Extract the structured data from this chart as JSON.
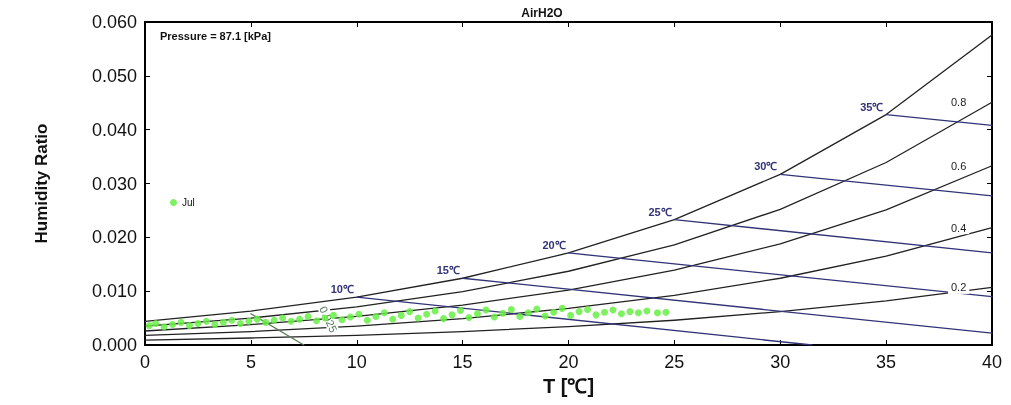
{
  "chart_data": {
    "type": "line",
    "title": "AirH2O",
    "xlabel": "T [℃]",
    "ylabel": "Humidity Ratio",
    "annotations": [
      "Pressure = 87.1 [kPa]"
    ],
    "xlim": [
      0,
      40
    ],
    "xticks": [
      0,
      5,
      10,
      15,
      20,
      25,
      30,
      35,
      40
    ],
    "ylim": [
      0,
      0.06
    ],
    "yticks": [
      {
        "value": 0,
        "label": "0.000"
      },
      {
        "value": 0.01,
        "label": "0.010"
      },
      {
        "value": 0.02,
        "label": "0.020"
      },
      {
        "value": 0.03,
        "label": "0.030"
      },
      {
        "value": 0.04,
        "label": "0.040"
      },
      {
        "value": 0.05,
        "label": "0.050"
      },
      {
        "value": 0.06,
        "label": "0.060"
      }
    ],
    "grid": false,
    "legend": "left",
    "marker": "none",
    "line_style": "solid",
    "series": [
      {
        "color": "#222222",
        "x": [
          0,
          5,
          10,
          15,
          20,
          25,
          30,
          35,
          40
        ],
        "values": [
          0.0044,
          0.0063,
          0.0089,
          0.0124,
          0.0171,
          0.0233,
          0.0317,
          0.0428,
          0.0576
        ]
      },
      {
        "name": "0.8",
        "color": "#222222",
        "x": [
          0,
          5,
          10,
          15,
          20,
          25,
          30,
          35,
          40
        ],
        "values": [
          0.0035,
          0.005,
          0.0071,
          0.0099,
          0.0137,
          0.0186,
          0.0252,
          0.0339,
          0.0451
        ]
      },
      {
        "name": "0.6",
        "color": "#222222",
        "x": [
          0,
          5,
          10,
          15,
          20,
          25,
          30,
          35,
          40
        ],
        "values": [
          0.0026,
          0.0038,
          0.0053,
          0.0074,
          0.0102,
          0.0139,
          0.0188,
          0.0251,
          0.0333
        ]
      },
      {
        "name": "0.4",
        "color": "#222222",
        "x": [
          0,
          5,
          10,
          15,
          20,
          25,
          30,
          35,
          40
        ],
        "values": [
          0.0018,
          0.0025,
          0.0035,
          0.0049,
          0.0068,
          0.0092,
          0.0124,
          0.0165,
          0.0218
        ]
      },
      {
        "name": "0.2",
        "color": "#222222",
        "x": [
          0,
          5,
          10,
          15,
          20,
          25,
          30,
          35,
          40
        ],
        "values": [
          0.0009,
          0.0013,
          0.0018,
          0.0025,
          0.0034,
          0.0046,
          0.0062,
          0.0082,
          0.0107
        ]
      },
      {
        "name": "10℃",
        "color": "#333377",
        "x": [
          31.5,
          10
        ],
        "values": [
          0,
          0.0089
        ]
      },
      {
        "name": "15℃",
        "color": "#333377",
        "x": [
          40,
          15
        ],
        "values": [
          0.0022,
          0.0124
        ]
      },
      {
        "name": "20℃",
        "color": "#333377",
        "x": [
          40,
          20
        ],
        "values": [
          0.009,
          0.0171
        ]
      },
      {
        "name": "25℃",
        "color": "#333377",
        "x": [
          40,
          25
        ],
        "values": [
          0.0171,
          0.0233
        ]
      },
      {
        "name": "30℃",
        "color": "#333377",
        "x": [
          40,
          30
        ],
        "values": [
          0.0277,
          0.0317
        ]
      },
      {
        "name": "35℃",
        "color": "#333377",
        "x": [
          40,
          35
        ],
        "values": [
          0.0408,
          0.0428
        ]
      },
      {
        "name": "0.925",
        "color": "#5a7a5a",
        "x": [
          5.0,
          7.5
        ],
        "values": [
          0.0058,
          0
        ]
      },
      {
        "type": "scatter",
        "name": "Jul",
        "color": "#66ee44",
        "marker": "circle",
        "x": [
          0.2,
          0.5,
          0.9,
          1.3,
          1.7,
          2.1,
          2.5,
          2.9,
          3.3,
          3.7,
          4.1,
          4.5,
          4.9,
          5.3,
          5.7,
          6.1,
          6.5,
          6.9,
          7.3,
          7.7,
          8.1,
          8.5,
          8.9,
          9.3,
          9.7,
          10.1,
          10.5,
          10.9,
          11.3,
          11.7,
          12.1,
          12.5,
          12.9,
          13.3,
          13.7,
          14.1,
          14.5,
          14.9,
          15.3,
          15.7,
          16.1,
          16.5,
          16.9,
          17.3,
          17.7,
          18.1,
          18.5,
          18.9,
          19.3,
          19.7,
          20.1,
          20.5,
          20.9,
          21.3,
          21.7,
          22.1,
          22.5,
          22.9,
          23.3,
          23.7,
          24.2,
          24.6
        ],
        "values": [
          0.0036,
          0.004,
          0.0034,
          0.0038,
          0.0042,
          0.0036,
          0.004,
          0.0044,
          0.0038,
          0.0042,
          0.0046,
          0.004,
          0.0044,
          0.0048,
          0.0042,
          0.0046,
          0.005,
          0.0044,
          0.0048,
          0.0053,
          0.0045,
          0.005,
          0.0055,
          0.0047,
          0.0052,
          0.0057,
          0.0046,
          0.0053,
          0.006,
          0.0048,
          0.0055,
          0.0062,
          0.005,
          0.0057,
          0.0063,
          0.0049,
          0.0056,
          0.0064,
          0.0051,
          0.0058,
          0.0065,
          0.0052,
          0.0059,
          0.0066,
          0.0053,
          0.006,
          0.0067,
          0.0054,
          0.0061,
          0.0068,
          0.0055,
          0.0062,
          0.0066,
          0.0056,
          0.0061,
          0.0065,
          0.0058,
          0.0062,
          0.006,
          0.0063,
          0.006,
          0.0061
        ]
      }
    ]
  }
}
